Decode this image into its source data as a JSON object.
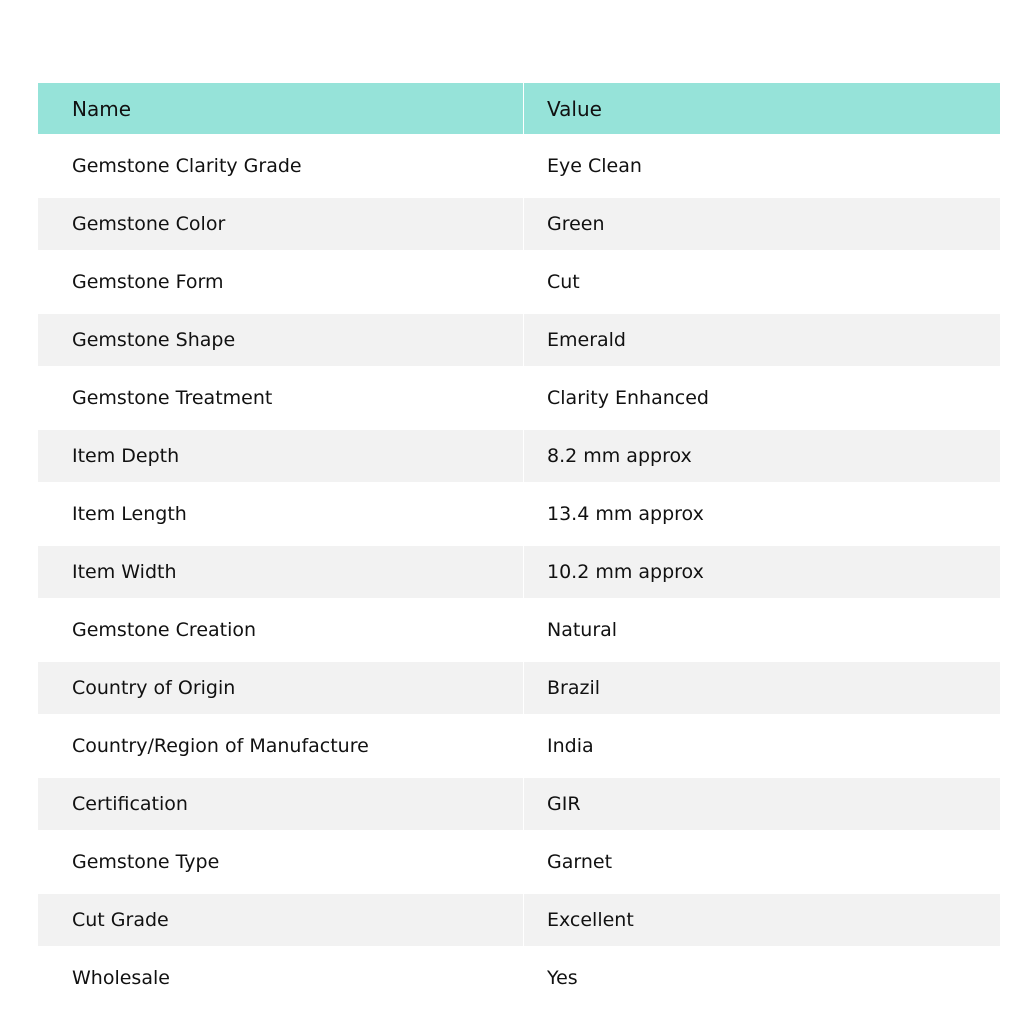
{
  "colors": {
    "header": "#96e3d9",
    "stripe": "#f2f2f2"
  },
  "table": {
    "headers": [
      "Name",
      "Value"
    ],
    "rows": [
      [
        "Gemstone Clarity Grade",
        "Eye Clean"
      ],
      [
        "Gemstone Color",
        "Green"
      ],
      [
        "Gemstone Form",
        "Cut"
      ],
      [
        "Gemstone Shape",
        "Emerald"
      ],
      [
        "Gemstone Treatment",
        "Clarity Enhanced"
      ],
      [
        "Item Depth",
        "8.2 mm approx"
      ],
      [
        "Item Length",
        "13.4 mm approx"
      ],
      [
        "Item Width",
        "10.2 mm approx"
      ],
      [
        "Gemstone Creation",
        "Natural"
      ],
      [
        "Country of Origin",
        "Brazil"
      ],
      [
        "Country/Region of Manufacture",
        "India"
      ],
      [
        "Certification",
        "GIR"
      ],
      [
        "Gemstone Type",
        "Garnet"
      ],
      [
        "Cut Grade",
        "Excellent"
      ],
      [
        "Wholesale",
        "Yes"
      ]
    ]
  }
}
